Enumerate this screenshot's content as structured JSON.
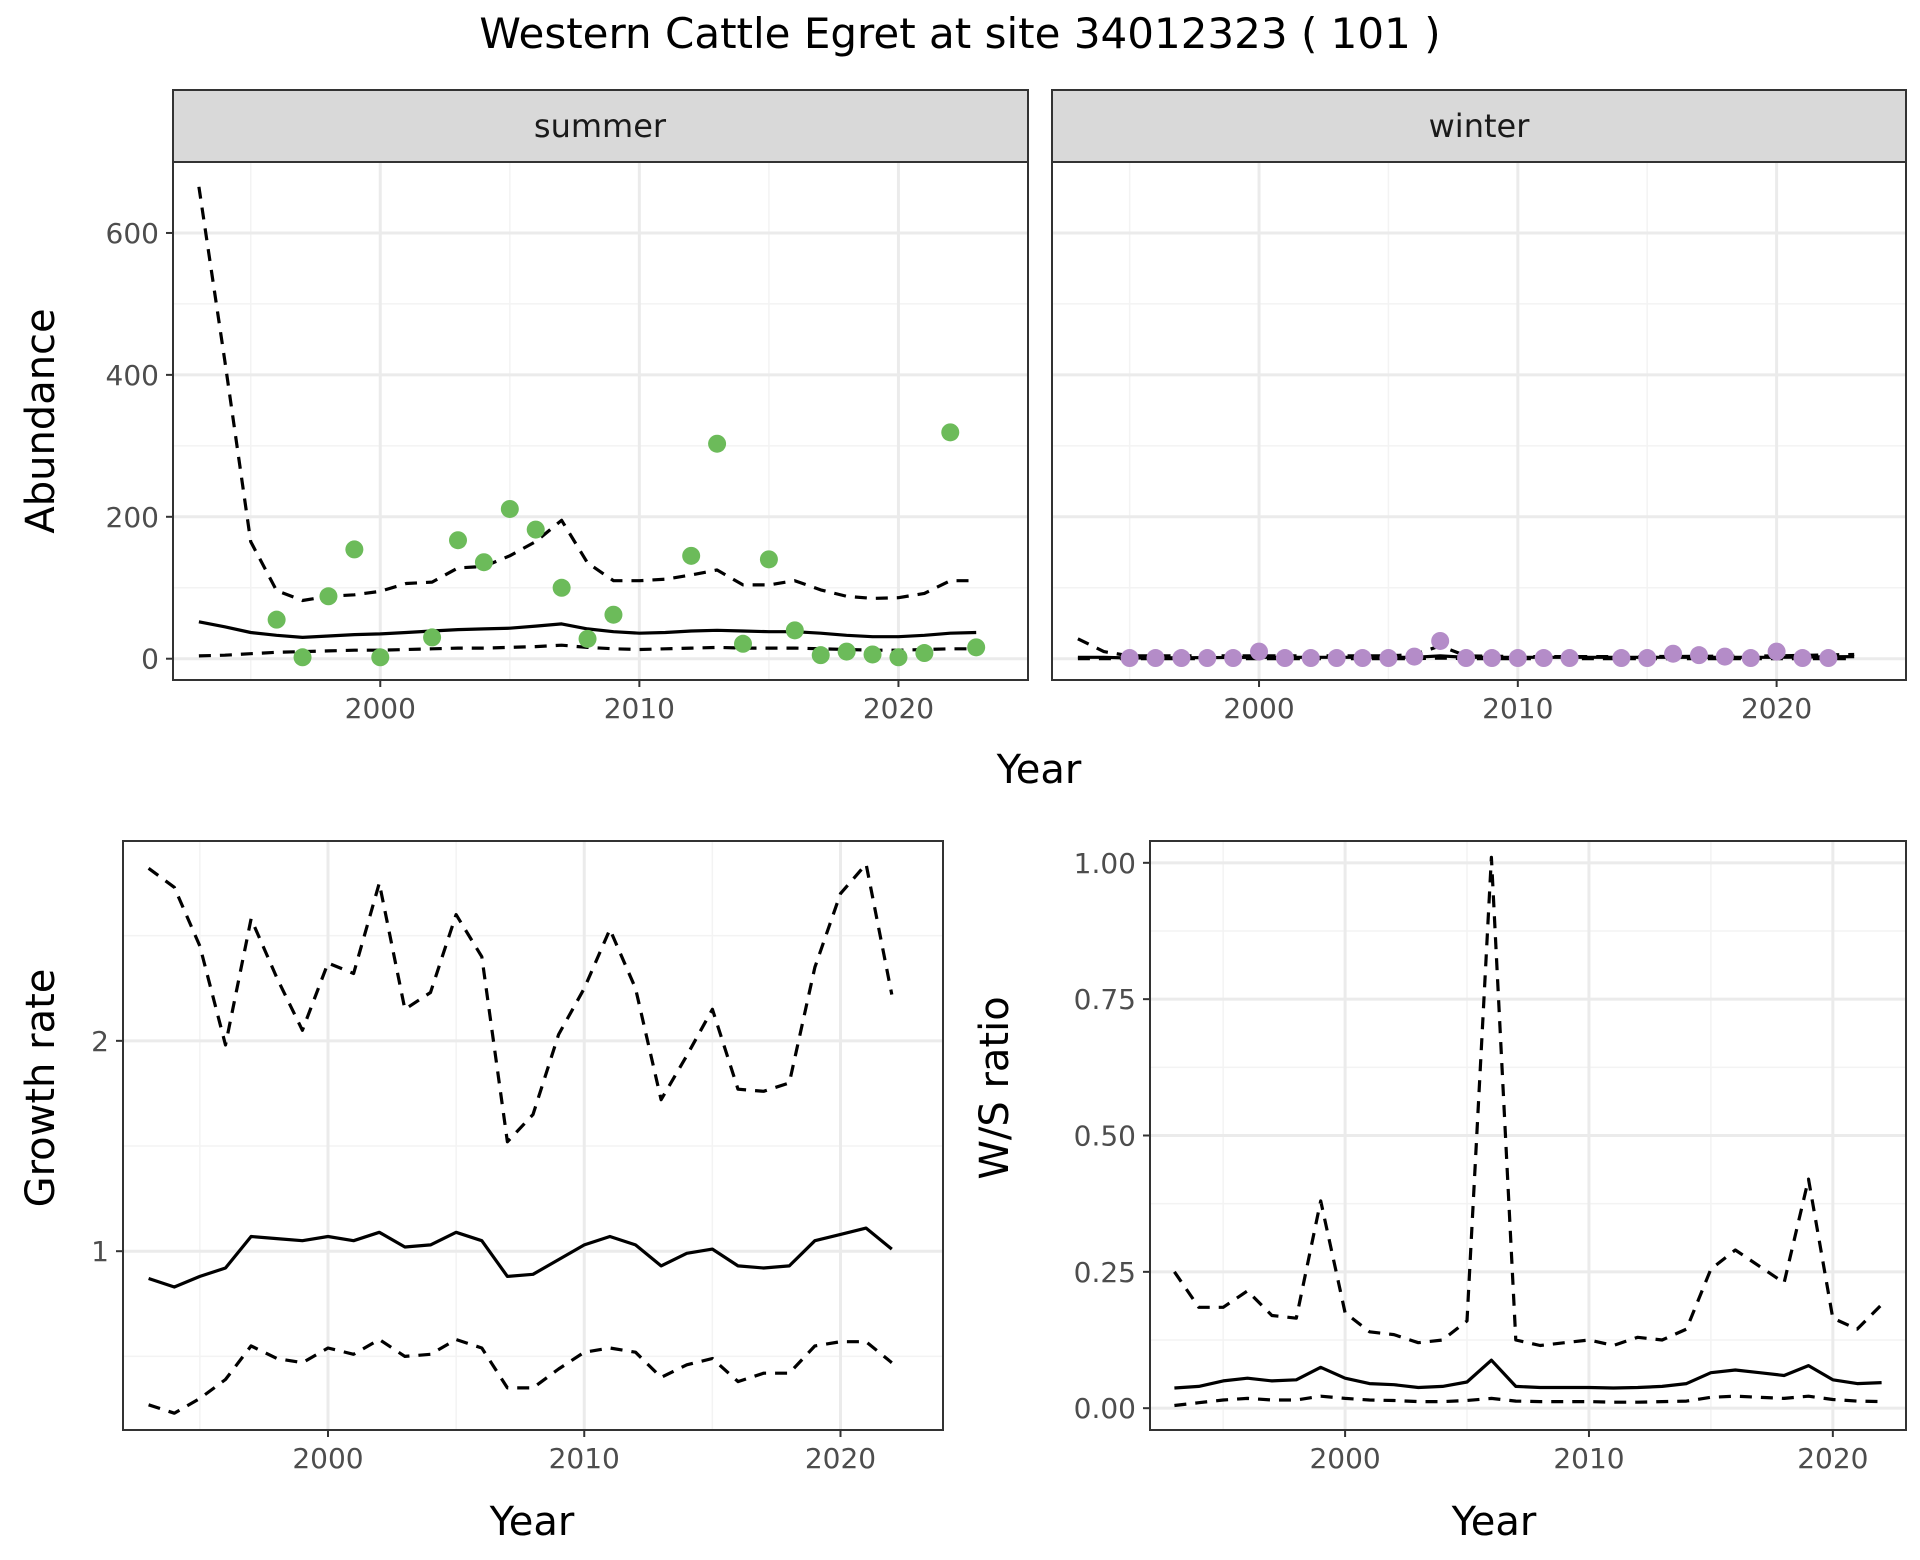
{
  "title": "Western Cattle Egret at site 34012323 ( 101 )",
  "colors": {
    "summer_points": "#6cbb5a",
    "winter_points": "#b48cc8",
    "lines": "#000000",
    "strip": "#d9d9d9",
    "grid_major": "#ebebeb",
    "grid_minor": "#f3f3f3"
  },
  "chart_data": [
    {
      "type": "scatter",
      "title": "",
      "xlabel": "Year",
      "ylabel": "Abundance",
      "xlim": [
        1992,
        2025
      ],
      "ylim": [
        -30,
        700
      ],
      "xticks": [
        2000,
        2010,
        2020
      ],
      "yticks": [
        0,
        200,
        400,
        600
      ],
      "grid": true,
      "legend": "none",
      "facets": [
        {
          "label": "summer",
          "points": {
            "x": [
              1996,
              1997,
              1998,
              1999,
              2000,
              2002,
              2003,
              2004,
              2005,
              2006,
              2007,
              2008,
              2009,
              2012,
              2013,
              2014,
              2015,
              2016,
              2017,
              2018,
              2019,
              2020,
              2021,
              2022,
              2023
            ],
            "y": [
              55,
              2,
              88,
              154,
              2,
              30,
              167,
              136,
              211,
              182,
              100,
              28,
              62,
              145,
              303,
              21,
              140,
              40,
              5,
              10,
              6,
              2,
              8,
              319,
              16
            ]
          },
          "estimate": {
            "x": [
              1993,
              1994,
              1995,
              1996,
              1997,
              1998,
              1999,
              2000,
              2001,
              2002,
              2003,
              2004,
              2005,
              2006,
              2007,
              2008,
              2009,
              2010,
              2011,
              2012,
              2013,
              2014,
              2015,
              2016,
              2017,
              2018,
              2019,
              2020,
              2021,
              2022,
              2023
            ],
            "y": [
              52,
              45,
              37,
              33,
              30,
              32,
              34,
              35,
              37,
              39,
              41,
              42,
              43,
              46,
              49,
              42,
              38,
              36,
              37,
              39,
              40,
              39,
              38,
              38,
              36,
              33,
              31,
              31,
              33,
              36,
              37
            ]
          },
          "upper": {
            "x": [
              1993,
              1994,
              1995,
              1996,
              1997,
              1998,
              1999,
              2000,
              2001,
              2002,
              2003,
              2004,
              2005,
              2006,
              2007,
              2008,
              2009,
              2010,
              2011,
              2012,
              2013,
              2014,
              2015,
              2016,
              2017,
              2018,
              2019,
              2020,
              2021,
              2022,
              2023
            ],
            "y": [
              665,
              420,
              165,
              96,
              82,
              88,
              90,
              95,
              106,
              108,
              128,
              130,
              145,
              165,
              195,
              135,
              110,
              110,
              112,
              118,
              125,
              104,
              104,
              110,
              97,
              88,
              85,
              86,
              92,
              110,
              110
            ]
          },
          "lower": {
            "x": [
              1993,
              1994,
              1995,
              1996,
              1997,
              1998,
              1999,
              2000,
              2001,
              2002,
              2003,
              2004,
              2005,
              2006,
              2007,
              2008,
              2009,
              2010,
              2011,
              2012,
              2013,
              2014,
              2015,
              2016,
              2017,
              2018,
              2019,
              2020,
              2021,
              2022,
              2023
            ],
            "y": [
              4,
              5,
              7,
              9,
              10,
              11,
              12,
              12,
              13,
              14,
              15,
              15,
              16,
              17,
              19,
              16,
              14,
              13,
              14,
              15,
              16,
              15,
              15,
              15,
              14,
              13,
              12,
              12,
              13,
              14,
              14
            ]
          }
        },
        {
          "label": "winter",
          "points": {
            "x": [
              1995,
              1996,
              1997,
              1998,
              1999,
              2000,
              2001,
              2002,
              2003,
              2004,
              2005,
              2006,
              2007,
              2008,
              2009,
              2010,
              2011,
              2012,
              2014,
              2015,
              2016,
              2017,
              2018,
              2019,
              2020,
              2021,
              2022
            ],
            "y": [
              1,
              1,
              1,
              1,
              1,
              10,
              1,
              1,
              1,
              1,
              1,
              3,
              25,
              1,
              1,
              1,
              1,
              1,
              1,
              1,
              7,
              5,
              3,
              1,
              10,
              1,
              1
            ]
          },
          "estimate": {
            "x": [
              1993,
              1994,
              1995,
              2000,
              2005,
              2006,
              2007,
              2008,
              2010,
              2015,
              2020,
              2023
            ],
            "y": [
              2,
              2,
              1,
              2,
              2,
              2,
              4,
              2,
              2,
              2,
              2,
              3
            ]
          },
          "upper": {
            "x": [
              1993,
              1994,
              1995,
              2000,
              2005,
              2006,
              2007,
              2008,
              2010,
              2015,
              2020,
              2023
            ],
            "y": [
              28,
              10,
              4,
              4,
              4,
              6,
              18,
              4,
              3,
              3,
              4,
              6
            ]
          },
          "lower": {
            "x": [
              1993,
              1994,
              1995,
              2000,
              2005,
              2006,
              2007,
              2008,
              2010,
              2015,
              2020,
              2023
            ],
            "y": [
              0,
              0,
              0,
              0,
              0,
              0,
              1,
              0,
              0,
              0,
              0,
              0
            ]
          }
        }
      ]
    },
    {
      "type": "line",
      "title": "",
      "xlabel": "Year",
      "ylabel": "Growth rate",
      "xlim": [
        1992,
        2024
      ],
      "ylim": [
        0.15,
        2.95
      ],
      "xticks": [
        2000,
        2010,
        2020
      ],
      "yticks": [
        1,
        2
      ],
      "grid": true,
      "legend": "none",
      "series": [
        {
          "style": "solid",
          "x": [
            1993,
            1994,
            1995,
            1996,
            1997,
            1998,
            1999,
            2000,
            2001,
            2002,
            2003,
            2004,
            2005,
            2006,
            2007,
            2008,
            2009,
            2010,
            2011,
            2012,
            2013,
            2014,
            2015,
            2016,
            2017,
            2018,
            2019,
            2020,
            2021,
            2022
          ],
          "y": [
            0.87,
            0.83,
            0.88,
            0.92,
            1.07,
            1.06,
            1.05,
            1.07,
            1.05,
            1.09,
            1.02,
            1.03,
            1.09,
            1.05,
            0.88,
            0.89,
            0.96,
            1.03,
            1.07,
            1.03,
            0.93,
            0.99,
            1.01,
            0.93,
            0.92,
            0.93,
            1.05,
            1.08,
            1.11,
            1.01
          ]
        },
        {
          "style": "dashed",
          "x": [
            1993,
            1994,
            1995,
            1996,
            1997,
            1998,
            1999,
            2000,
            2001,
            2002,
            2003,
            2004,
            2005,
            2006,
            2007,
            2008,
            2009,
            2010,
            2011,
            2012,
            2013,
            2014,
            2015,
            2016,
            2017,
            2018,
            2019,
            2020,
            2021,
            2022
          ],
          "y": [
            2.82,
            2.73,
            2.45,
            1.98,
            2.58,
            2.3,
            2.05,
            2.37,
            2.32,
            2.75,
            2.15,
            2.23,
            2.6,
            2.4,
            1.52,
            1.65,
            2.03,
            2.25,
            2.53,
            2.25,
            1.72,
            1.93,
            2.15,
            1.77,
            1.76,
            1.8,
            2.35,
            2.7,
            2.84,
            2.22
          ]
        },
        {
          "style": "dashed",
          "x": [
            1993,
            1994,
            1995,
            1996,
            1997,
            1998,
            1999,
            2000,
            2001,
            2002,
            2003,
            2004,
            2005,
            2006,
            2007,
            2008,
            2009,
            2010,
            2011,
            2012,
            2013,
            2014,
            2015,
            2016,
            2017,
            2018,
            2019,
            2020,
            2021,
            2022
          ],
          "y": [
            0.27,
            0.23,
            0.3,
            0.39,
            0.55,
            0.49,
            0.47,
            0.54,
            0.51,
            0.58,
            0.5,
            0.51,
            0.58,
            0.54,
            0.35,
            0.35,
            0.44,
            0.52,
            0.54,
            0.52,
            0.4,
            0.46,
            0.49,
            0.38,
            0.42,
            0.42,
            0.55,
            0.57,
            0.57,
            0.47
          ]
        }
      ]
    },
    {
      "type": "line",
      "title": "",
      "xlabel": "Year",
      "ylabel": "W/S ratio",
      "xlim": [
        1992,
        2023
      ],
      "ylim": [
        -0.04,
        1.04
      ],
      "xticks": [
        2000,
        2010,
        2020
      ],
      "yticks": [
        0.0,
        0.25,
        0.5,
        0.75,
        1.0
      ],
      "ytick_labels": [
        "0.00",
        "0.25",
        "0.50",
        "0.75",
        "1.00"
      ],
      "grid": true,
      "legend": "none",
      "series": [
        {
          "style": "solid",
          "x": [
            1993,
            1994,
            1995,
            1996,
            1997,
            1998,
            1999,
            2000,
            2001,
            2002,
            2003,
            2004,
            2005,
            2006,
            2007,
            2008,
            2009,
            2010,
            2011,
            2012,
            2013,
            2014,
            2015,
            2016,
            2017,
            2018,
            2019,
            2020,
            2021,
            2022
          ],
          "y": [
            0.037,
            0.04,
            0.05,
            0.055,
            0.05,
            0.052,
            0.075,
            0.055,
            0.045,
            0.043,
            0.038,
            0.04,
            0.048,
            0.088,
            0.04,
            0.038,
            0.038,
            0.038,
            0.037,
            0.038,
            0.04,
            0.045,
            0.065,
            0.07,
            0.065,
            0.06,
            0.078,
            0.052,
            0.045,
            0.047
          ]
        },
        {
          "style": "dashed",
          "x": [
            1993,
            1994,
            1995,
            1996,
            1997,
            1998,
            1999,
            2000,
            2001,
            2002,
            2003,
            2004,
            2005,
            2006,
            2007,
            2008,
            2009,
            2010,
            2011,
            2012,
            2013,
            2014,
            2015,
            2016,
            2017,
            2018,
            2019,
            2020,
            2021,
            2022
          ],
          "y": [
            0.25,
            0.185,
            0.185,
            0.215,
            0.17,
            0.165,
            0.38,
            0.175,
            0.14,
            0.135,
            0.12,
            0.125,
            0.16,
            1.01,
            0.125,
            0.115,
            0.12,
            0.125,
            0.115,
            0.13,
            0.125,
            0.145,
            0.255,
            0.29,
            0.26,
            0.23,
            0.42,
            0.165,
            0.145,
            0.19
          ]
        },
        {
          "style": "dashed",
          "x": [
            1993,
            1994,
            1995,
            1996,
            1997,
            1998,
            1999,
            2000,
            2001,
            2002,
            2003,
            2004,
            2005,
            2006,
            2007,
            2008,
            2009,
            2010,
            2011,
            2012,
            2013,
            2014,
            2015,
            2016,
            2017,
            2018,
            2019,
            2020,
            2021,
            2022
          ],
          "y": [
            0.005,
            0.01,
            0.015,
            0.018,
            0.015,
            0.015,
            0.022,
            0.018,
            0.015,
            0.014,
            0.012,
            0.012,
            0.014,
            0.018,
            0.013,
            0.012,
            0.012,
            0.012,
            0.011,
            0.011,
            0.012,
            0.013,
            0.02,
            0.022,
            0.02,
            0.018,
            0.022,
            0.016,
            0.013,
            0.012
          ]
        }
      ]
    }
  ]
}
